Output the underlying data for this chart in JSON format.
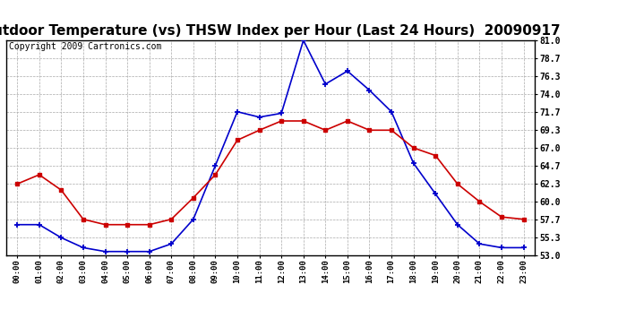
{
  "title": "Outdoor Temperature (vs) THSW Index per Hour (Last 24 Hours)  20090917",
  "copyright": "Copyright 2009 Cartronics.com",
  "hours": [
    "00:00",
    "01:00",
    "02:00",
    "03:00",
    "04:00",
    "05:00",
    "06:00",
    "07:00",
    "08:00",
    "09:00",
    "10:00",
    "11:00",
    "12:00",
    "13:00",
    "14:00",
    "15:00",
    "16:00",
    "17:00",
    "18:00",
    "19:00",
    "20:00",
    "21:00",
    "22:00",
    "23:00"
  ],
  "temp": [
    62.3,
    63.5,
    61.5,
    57.7,
    57.0,
    57.0,
    57.0,
    57.7,
    60.5,
    63.5,
    68.0,
    69.3,
    70.5,
    70.5,
    69.3,
    70.5,
    69.3,
    69.3,
    67.0,
    66.0,
    62.3,
    60.0,
    58.0,
    57.7
  ],
  "thsw": [
    57.0,
    57.0,
    55.3,
    54.0,
    53.5,
    53.5,
    53.5,
    54.5,
    57.7,
    64.7,
    71.7,
    71.0,
    71.5,
    81.0,
    75.3,
    77.0,
    74.5,
    71.7,
    65.0,
    61.0,
    57.0,
    54.5,
    54.0,
    54.0
  ],
  "ylim_min": 53.0,
  "ylim_max": 81.0,
  "yticks": [
    53.0,
    55.3,
    57.7,
    60.0,
    62.3,
    64.7,
    67.0,
    69.3,
    71.7,
    74.0,
    76.3,
    78.7,
    81.0
  ],
  "temp_color": "#cc0000",
  "thsw_color": "#0000cc",
  "bg_color": "#ffffff",
  "grid_color": "#aaaaaa",
  "title_fontsize": 11,
  "copyright_fontsize": 7
}
